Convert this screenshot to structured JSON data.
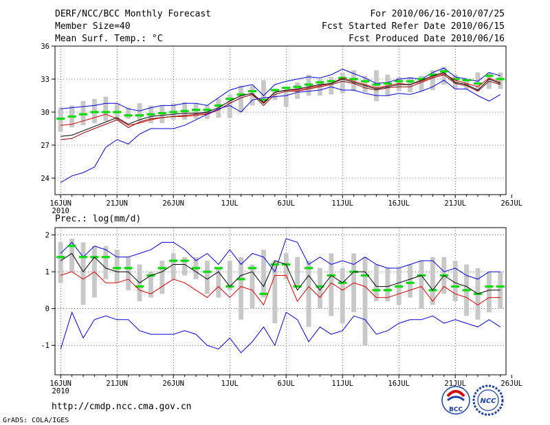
{
  "header": {
    "left": [
      "DERF/NCC/BCC Monthly Forecast",
      "Member Size=40",
      "Mean Surf. Temp.: °C"
    ],
    "right": [
      "For 2010/06/16-2010/07/25",
      "Fcst Started Refer Date 2010/06/15",
      "Fcst Produced Date 2010/06/16"
    ]
  },
  "footer": {
    "url": "http://cmdp.ncc.cma.gov.cn",
    "credit": "GrADS: COLA/IGES"
  },
  "logos": {
    "bcc_text": "BCC",
    "ncc_text": "NCC"
  },
  "colors": {
    "box": "#c8c8c8",
    "mean": "#00dc00",
    "bound": "#0000dd",
    "control": "#dd0000",
    "ensemble": "#000000",
    "grid": "#000000"
  },
  "chart_data": [
    {
      "type": "line",
      "title": "Mean Surf. Temp.: °C",
      "ylim": [
        22.5,
        36
      ],
      "yticks": [
        24,
        27,
        30,
        33,
        36
      ],
      "xlim": [
        0.5,
        40.5
      ],
      "xticks": [
        1,
        6,
        11,
        16,
        21,
        26,
        31,
        36,
        41
      ],
      "xticklabels": [
        "16JUN",
        "21JUN",
        "26JUN",
        "1JUL",
        "6JUL",
        "11JUL",
        "16JUL",
        "21JUL",
        "26JUL"
      ],
      "year_label": "2010",
      "days": [
        1,
        2,
        3,
        4,
        5,
        6,
        7,
        8,
        9,
        10,
        11,
        12,
        13,
        14,
        15,
        16,
        17,
        18,
        19,
        20,
        21,
        22,
        23,
        24,
        25,
        26,
        27,
        28,
        29,
        30,
        31,
        32,
        33,
        34,
        35,
        36,
        37,
        38,
        39,
        40
      ],
      "box_low": [
        28.2,
        28.6,
        28.8,
        29.0,
        29.2,
        29.2,
        29.4,
        29.2,
        29.0,
        29.0,
        29.3,
        29.3,
        29.4,
        29.4,
        29.5,
        29.5,
        30.0,
        30.6,
        30.8,
        31.1,
        30.5,
        31.2,
        31.5,
        31.5,
        31.6,
        31.7,
        31.9,
        31.8,
        31.0,
        31.5,
        31.9,
        31.8,
        31.9,
        32.0,
        32.5,
        32.1,
        32.1,
        31.9,
        32.1,
        32.1
      ],
      "box_high": [
        30.4,
        30.6,
        31.0,
        31.2,
        31.4,
        30.8,
        30.4,
        30.8,
        30.6,
        30.6,
        30.8,
        30.9,
        30.8,
        30.6,
        31.2,
        31.6,
        32.4,
        32.4,
        32.9,
        32.1,
        32.0,
        32.7,
        33.4,
        33.0,
        33.2,
        33.6,
        33.8,
        33.3,
        33.8,
        33.4,
        33.2,
        33.2,
        33.3,
        33.8,
        34.1,
        33.4,
        33.0,
        33.6,
        33.6,
        33.6
      ],
      "series": [
        {
          "name": "ensemble-max",
          "style": "blue",
          "values": [
            30.3,
            30.4,
            30.5,
            30.6,
            30.8,
            30.8,
            30.3,
            30.1,
            30.4,
            30.6,
            30.6,
            30.8,
            30.8,
            30.6,
            31.3,
            32.0,
            32.3,
            32.5,
            31.5,
            32.5,
            32.8,
            33.0,
            33.2,
            33.1,
            33.4,
            33.9,
            33.5,
            33.1,
            32.6,
            32.7,
            33.0,
            33.1,
            33.0,
            33.6,
            34.0,
            33.2,
            33.0,
            32.8,
            33.6,
            33.3
          ]
        },
        {
          "name": "ensemble-mean",
          "style": "green-dash",
          "values": [
            29.4,
            29.6,
            29.8,
            30.0,
            30.0,
            30.0,
            29.7,
            29.7,
            29.8,
            29.9,
            30.0,
            30.1,
            30.2,
            30.2,
            30.6,
            31.2,
            31.6,
            31.9,
            31.1,
            32.0,
            32.2,
            32.3,
            32.5,
            32.7,
            32.8,
            33.1,
            33.0,
            32.8,
            32.5,
            32.6,
            32.8,
            32.8,
            33.0,
            33.4,
            33.7,
            33.0,
            32.9,
            32.6,
            33.3,
            33.0
          ]
        },
        {
          "name": "control-forecast",
          "style": "red",
          "values": [
            28.8,
            28.9,
            29.2,
            29.5,
            29.8,
            29.4,
            28.8,
            29.0,
            29.3,
            29.5,
            29.6,
            29.6,
            29.7,
            29.8,
            30.2,
            30.8,
            31.3,
            31.6,
            30.9,
            31.8,
            32.0,
            32.0,
            32.2,
            32.4,
            32.6,
            33.1,
            32.8,
            32.5,
            32.2,
            32.4,
            32.6,
            32.5,
            32.8,
            33.2,
            33.5,
            32.9,
            32.6,
            32.3,
            33.1,
            32.7
          ]
        },
        {
          "name": "ensemble-median",
          "style": "black",
          "values": [
            27.8,
            27.9,
            28.3,
            28.7,
            29.1,
            29.5,
            28.9,
            29.3,
            29.6,
            29.7,
            29.8,
            29.9,
            29.9,
            30.0,
            30.4,
            31.0,
            31.5,
            31.7,
            30.8,
            31.8,
            32.0,
            32.1,
            32.3,
            32.5,
            32.6,
            33.0,
            32.7,
            32.4,
            32.1,
            32.3,
            32.5,
            32.5,
            32.9,
            33.3,
            33.6,
            32.7,
            32.5,
            32.0,
            33.0,
            32.6
          ]
        },
        {
          "name": "control-alt",
          "style": "dark-red",
          "values": [
            27.5,
            27.6,
            28.1,
            28.5,
            28.9,
            29.3,
            28.6,
            29.1,
            29.4,
            29.5,
            29.6,
            29.7,
            29.8,
            29.9,
            30.2,
            30.8,
            31.3,
            31.6,
            30.6,
            31.6,
            31.9,
            31.9,
            32.1,
            32.3,
            32.5,
            32.8,
            32.6,
            32.2,
            32.0,
            32.2,
            32.3,
            32.3,
            32.7,
            33.1,
            33.4,
            32.6,
            32.4,
            31.9,
            32.8,
            32.5
          ]
        },
        {
          "name": "ensemble-min",
          "style": "blue",
          "values": [
            23.6,
            24.2,
            24.5,
            25.0,
            26.8,
            27.5,
            27.1,
            28.0,
            28.5,
            28.5,
            28.5,
            28.8,
            29.3,
            29.8,
            30.3,
            30.6,
            30.0,
            31.1,
            31.3,
            31.4,
            31.5,
            31.8,
            31.9,
            32.0,
            32.3,
            32.0,
            32.0,
            31.7,
            31.5,
            31.5,
            31.7,
            31.6,
            31.9,
            32.3,
            32.9,
            32.1,
            32.1,
            31.5,
            31.0,
            31.6
          ]
        }
      ]
    },
    {
      "type": "line",
      "title": "Prec.: log(mm/d)",
      "ylim": [
        -1.8,
        2.2
      ],
      "yticks": [
        -1,
        0,
        1,
        2
      ],
      "xlim": [
        0.5,
        40.5
      ],
      "xticks": [
        1,
        6,
        11,
        16,
        21,
        26,
        31,
        36,
        41
      ],
      "xticklabels": [
        "16JUN",
        "21JUN",
        "26JUN",
        "1JUL",
        "6JUL",
        "11JUL",
        "16JUL",
        "21JUL",
        "26JUL"
      ],
      "year_label": "2010",
      "days": [
        1,
        2,
        3,
        4,
        5,
        6,
        7,
        8,
        9,
        10,
        11,
        12,
        13,
        14,
        15,
        16,
        17,
        18,
        19,
        20,
        21,
        22,
        23,
        24,
        25,
        26,
        27,
        28,
        29,
        30,
        31,
        32,
        33,
        34,
        35,
        36,
        37,
        38,
        39,
        40
      ],
      "box_low": [
        0.7,
        1.0,
        0.1,
        0.3,
        0.8,
        0.7,
        0.5,
        0.2,
        0.3,
        0.4,
        0.8,
        0.9,
        0.8,
        0.4,
        0.3,
        0.5,
        -0.3,
        0.0,
        0.3,
        -0.4,
        0.8,
        0.6,
        -0.5,
        0.0,
        -0.2,
        -0.4,
        -0.1,
        -1.0,
        0.2,
        0.2,
        0.1,
        0.3,
        0.0,
        0.1,
        0.4,
        0.2,
        -0.2,
        -0.3,
        -0.1,
        0.0
      ],
      "box_high": [
        1.8,
        1.9,
        1.8,
        1.7,
        1.7,
        1.6,
        1.4,
        1.2,
        1.0,
        1.3,
        1.5,
        1.4,
        1.4,
        1.3,
        1.1,
        1.3,
        1.4,
        1.2,
        1.6,
        1.3,
        1.5,
        1.4,
        1.3,
        1.1,
        1.5,
        1.1,
        1.5,
        1.4,
        1.2,
        1.1,
        1.1,
        1.2,
        1.3,
        1.4,
        1.4,
        1.3,
        1.2,
        1.1,
        1.0,
        1.0
      ],
      "series": [
        {
          "name": "ensemble-max",
          "style": "blue",
          "values": [
            1.5,
            1.8,
            1.4,
            1.7,
            1.6,
            1.4,
            1.4,
            1.5,
            1.6,
            1.8,
            1.8,
            1.6,
            1.3,
            1.5,
            1.2,
            1.6,
            1.2,
            1.5,
            1.4,
            1.0,
            1.9,
            1.8,
            1.2,
            1.4,
            1.2,
            1.3,
            1.2,
            1.4,
            1.2,
            1.1,
            1.1,
            1.2,
            1.3,
            1.3,
            1.0,
            1.1,
            0.9,
            0.8,
            1.0,
            1.0
          ]
        },
        {
          "name": "ensemble-mean",
          "style": "green-dash",
          "values": [
            1.4,
            1.7,
            1.4,
            1.4,
            1.4,
            1.1,
            1.1,
            0.6,
            0.9,
            1.1,
            1.3,
            1.3,
            1.1,
            1.0,
            1.1,
            0.6,
            0.8,
            1.1,
            0.4,
            1.2,
            1.2,
            0.6,
            1.1,
            0.6,
            0.9,
            0.7,
            1.0,
            0.9,
            0.5,
            0.5,
            0.6,
            0.7,
            0.9,
            0.5,
            0.9,
            0.6,
            0.5,
            0.4,
            0.6,
            0.6
          ]
        },
        {
          "name": "ensemble-median",
          "style": "black",
          "values": [
            1.3,
            1.5,
            1.0,
            1.4,
            1.1,
            1.0,
            1.0,
            0.7,
            0.9,
            1.0,
            1.2,
            1.2,
            1.0,
            0.8,
            1.0,
            0.6,
            0.9,
            1.0,
            0.6,
            1.3,
            1.2,
            0.5,
            0.9,
            0.5,
            0.9,
            0.7,
            1.0,
            1.0,
            0.6,
            0.6,
            0.7,
            0.8,
            0.9,
            0.5,
            0.9,
            0.7,
            0.6,
            0.4,
            0.5,
            0.5
          ]
        },
        {
          "name": "control-forecast",
          "style": "red",
          "values": [
            0.9,
            1.0,
            0.8,
            1.0,
            0.7,
            0.7,
            0.8,
            0.5,
            0.4,
            0.6,
            0.8,
            0.7,
            0.5,
            0.3,
            0.6,
            0.3,
            0.6,
            0.5,
            0.1,
            0.9,
            0.9,
            0.2,
            0.6,
            0.3,
            0.7,
            0.5,
            0.7,
            0.6,
            0.3,
            0.3,
            0.4,
            0.5,
            0.6,
            0.2,
            0.6,
            0.4,
            0.3,
            0.1,
            0.3,
            0.3
          ]
        },
        {
          "name": "ensemble-min",
          "style": "blue",
          "values": [
            -1.1,
            -0.1,
            -0.8,
            -0.3,
            -0.2,
            -0.3,
            -0.3,
            -0.6,
            -0.7,
            -0.7,
            -0.7,
            -0.6,
            -0.7,
            -1.0,
            -1.1,
            -0.8,
            -1.2,
            -0.9,
            -0.5,
            -1.0,
            -0.1,
            -0.3,
            -0.9,
            -0.5,
            -0.7,
            -0.6,
            -0.2,
            -0.3,
            -0.7,
            -0.6,
            -0.4,
            -0.3,
            -0.3,
            -0.2,
            -0.4,
            -0.3,
            -0.4,
            -0.5,
            -0.3,
            -0.5
          ]
        }
      ]
    }
  ]
}
